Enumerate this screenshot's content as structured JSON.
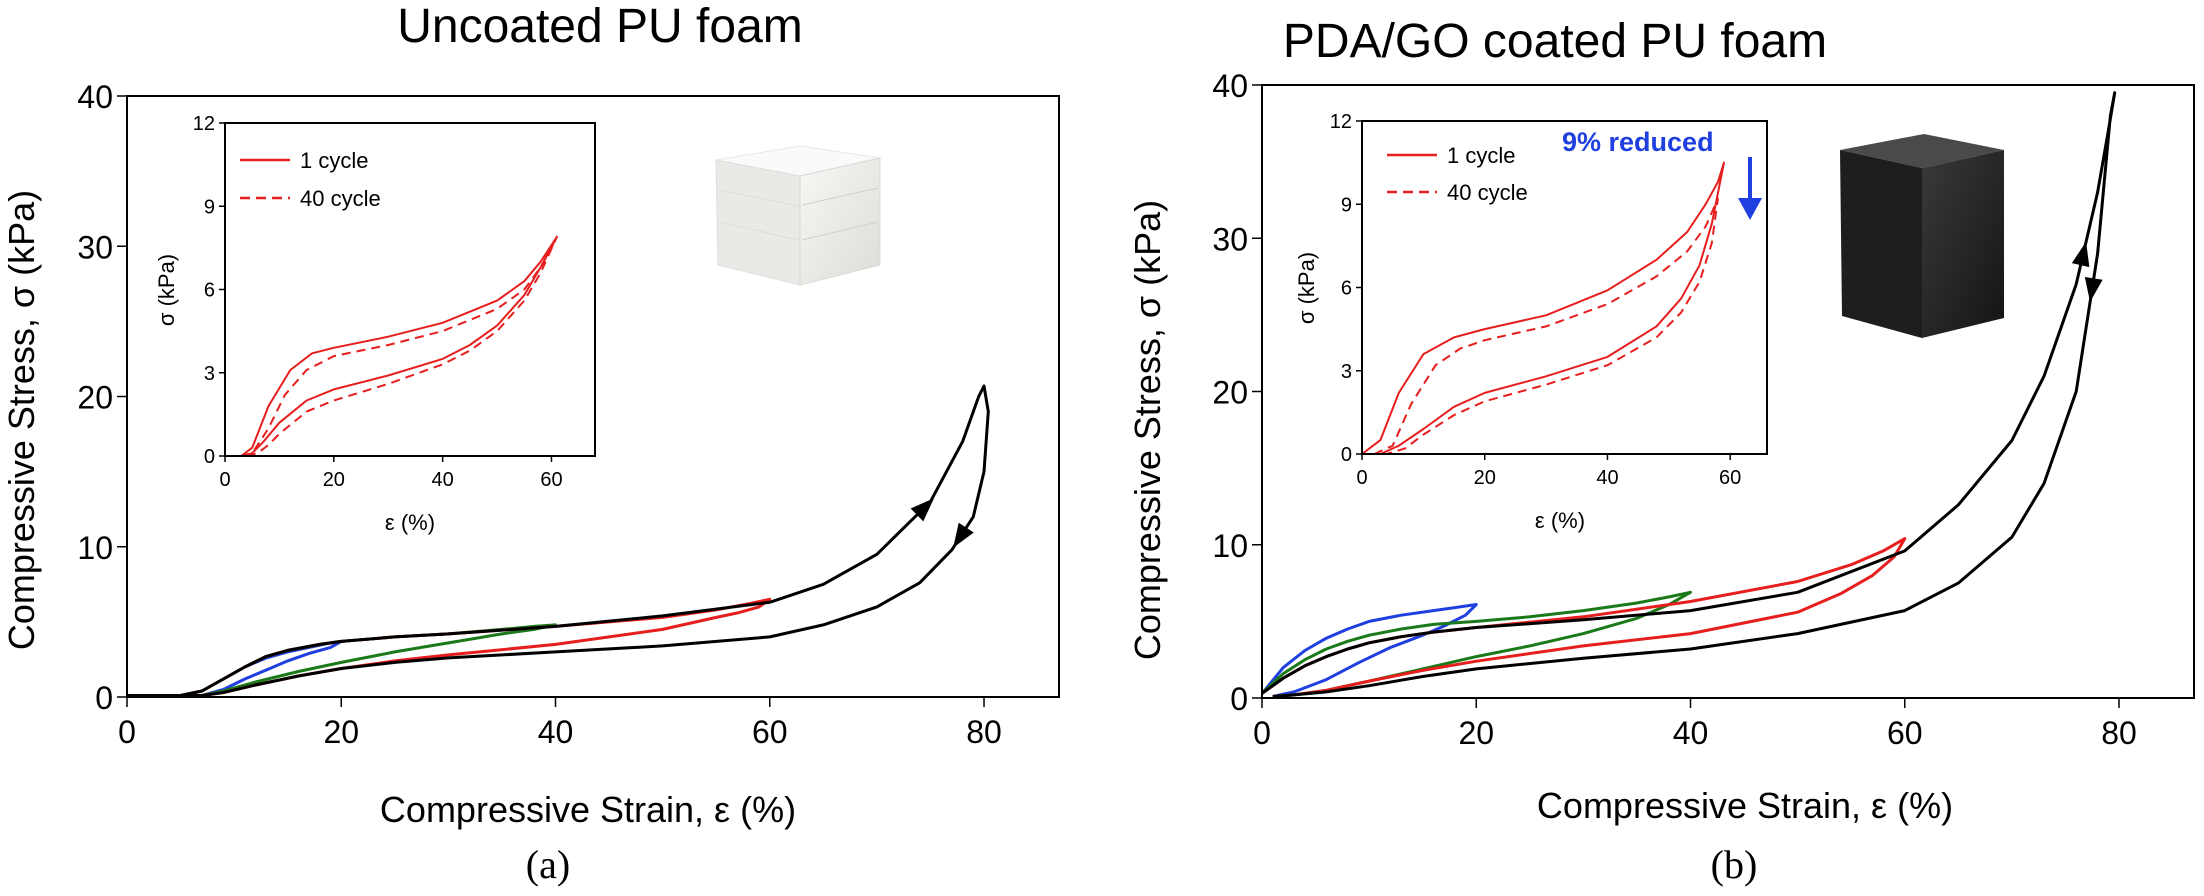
{
  "colors": {
    "black": "#000000",
    "red": "#e61e1e",
    "green": "#1a7a1a",
    "blue": "#1f3fe0",
    "annotation": "#1f3fe0"
  },
  "chart_data": [
    {
      "panel_label": "(a)",
      "type": "line",
      "title": "Uncoated PU foam",
      "xlabel": "Compressive Strain, ε (%)",
      "ylabel": "Compressive Stress, σ (kPa)",
      "xlim": [
        0,
        87
      ],
      "ylim": [
        0,
        40
      ],
      "xticks": [
        "0",
        "20",
        "40",
        "60",
        "80"
      ],
      "xtick_values": [
        0,
        20,
        40,
        60,
        80
      ],
      "yticks": [
        "0",
        "10",
        "20",
        "30",
        "40"
      ],
      "ytick_values": [
        0,
        10,
        20,
        30,
        40
      ],
      "grid": false,
      "image_icon": "white-foam-cube-photo",
      "series": [
        {
          "color": "#000000",
          "direction_arrows": true,
          "x": [
            0,
            5,
            7,
            9,
            11,
            13,
            15,
            18,
            20,
            25,
            30,
            40,
            50,
            60,
            65,
            70,
            75,
            78,
            79.5,
            80,
            80.4,
            80,
            79,
            77,
            74,
            70,
            65,
            60,
            50,
            40,
            30,
            25,
            20,
            16,
            12,
            9,
            7,
            5
          ],
          "y": [
            0.1,
            0.1,
            0.4,
            1.2,
            2.0,
            2.7,
            3.1,
            3.5,
            3.7,
            4.0,
            4.2,
            4.7,
            5.4,
            6.3,
            7.5,
            9.5,
            13.0,
            17.0,
            20.0,
            20.7,
            19.0,
            15.0,
            12.0,
            9.8,
            7.6,
            6.0,
            4.8,
            4.0,
            3.4,
            3.0,
            2.6,
            2.3,
            1.9,
            1.4,
            0.8,
            0.3,
            0.1,
            0.1
          ]
        },
        {
          "color": "#e61e1e",
          "x": [
            0,
            5,
            7,
            9,
            11,
            13,
            15,
            18,
            20,
            25,
            30,
            40,
            50,
            55,
            58,
            60,
            59,
            57,
            55,
            50,
            40,
            30,
            25,
            20,
            16,
            12,
            9,
            7,
            5
          ],
          "y": [
            0.1,
            0.1,
            0.4,
            1.2,
            2.0,
            2.7,
            3.1,
            3.5,
            3.7,
            4.0,
            4.2,
            4.7,
            5.3,
            5.8,
            6.2,
            6.5,
            6.0,
            5.6,
            5.3,
            4.5,
            3.5,
            2.8,
            2.4,
            1.9,
            1.4,
            0.8,
            0.3,
            0.1,
            0.1
          ]
        },
        {
          "color": "#1a7a1a",
          "x": [
            0,
            5,
            7,
            9,
            11,
            13,
            15,
            18,
            20,
            25,
            30,
            35,
            38,
            40,
            38,
            35,
            30,
            25,
            20,
            16,
            12,
            9,
            7,
            5
          ],
          "y": [
            0.1,
            0.1,
            0.4,
            1.2,
            2.0,
            2.7,
            3.1,
            3.5,
            3.7,
            4.0,
            4.2,
            4.5,
            4.7,
            4.8,
            4.5,
            4.2,
            3.6,
            3.0,
            2.3,
            1.7,
            1.0,
            0.4,
            0.1,
            0.1
          ]
        },
        {
          "color": "#1f3fe0",
          "x": [
            0,
            5,
            7,
            9,
            11,
            13,
            15,
            17,
            19,
            20,
            19,
            17,
            15,
            13,
            11,
            9,
            7,
            5
          ],
          "y": [
            0.1,
            0.1,
            0.4,
            1.2,
            2.0,
            2.6,
            3.0,
            3.3,
            3.6,
            3.7,
            3.3,
            2.9,
            2.4,
            1.8,
            1.2,
            0.5,
            0.1,
            0.1
          ]
        }
      ],
      "inset": {
        "xlabel": "ε (%)",
        "ylabel": "σ (kPa)",
        "xlim": [
          0,
          68
        ],
        "ylim": [
          0,
          12
        ],
        "xticks": [
          "0",
          "20",
          "40",
          "60"
        ],
        "xtick_values": [
          0,
          20,
          40,
          60
        ],
        "yticks": [
          "0",
          "3",
          "6",
          "9",
          "12"
        ],
        "ytick_values": [
          0,
          3,
          6,
          9,
          12
        ],
        "legend": [
          {
            "label": "1 cycle",
            "style": "solid"
          },
          {
            "label": "40 cycle",
            "style": "dashed"
          }
        ],
        "legend_position": "top-left",
        "series": [
          {
            "style": "solid",
            "x": [
              0,
              3,
              5,
              8,
              12,
              16,
              20,
              30,
              40,
              50,
              55,
              58,
              60,
              61,
              58,
              55,
              50,
              45,
              40,
              30,
              20,
              15,
              10,
              7,
              5,
              3
            ],
            "y": [
              0,
              0,
              0.3,
              1.8,
              3.1,
              3.7,
              3.9,
              4.3,
              4.8,
              5.6,
              6.3,
              7.0,
              7.6,
              7.9,
              6.8,
              5.8,
              4.7,
              4.0,
              3.5,
              2.9,
              2.4,
              2.0,
              1.2,
              0.5,
              0.1,
              0
            ]
          },
          {
            "style": "dashed",
            "x": [
              3,
              5,
              8,
              11,
              15,
              20,
              30,
              40,
              50,
              55,
              58,
              60,
              61,
              58,
              55,
              50,
              45,
              40,
              30,
              20,
              15,
              10,
              8,
              6,
              4
            ],
            "y": [
              0,
              0.1,
              1.0,
              2.2,
              3.1,
              3.6,
              4.0,
              4.5,
              5.3,
              6.0,
              6.8,
              7.5,
              7.9,
              6.6,
              5.6,
              4.5,
              3.8,
              3.3,
              2.6,
              2.0,
              1.6,
              0.8,
              0.4,
              0.1,
              0
            ]
          }
        ]
      }
    },
    {
      "panel_label": "(b)",
      "type": "line",
      "title": "PDA/GO coated PU foam",
      "xlabel": "Compressive Strain, ε (%)",
      "ylabel": "Compressive Stress, σ (kPa)",
      "xlim": [
        0,
        87
      ],
      "ylim": [
        0,
        40
      ],
      "xticks": [
        "0",
        "20",
        "40",
        "60",
        "80"
      ],
      "xtick_values": [
        0,
        20,
        40,
        60,
        80
      ],
      "yticks": [
        "0",
        "10",
        "20",
        "30",
        "40"
      ],
      "ytick_values": [
        0,
        10,
        20,
        30,
        40
      ],
      "grid": false,
      "image_icon": "black-foam-cube-photo",
      "series": [
        {
          "color": "#000000",
          "direction_arrows": true,
          "x": [
            0,
            2,
            4,
            6,
            8,
            10,
            13,
            16,
            20,
            30,
            40,
            50,
            60,
            65,
            70,
            73,
            76,
            78,
            79,
            79.6,
            79.2,
            78,
            76,
            73,
            70,
            65,
            60,
            50,
            40,
            30,
            20,
            15,
            10,
            6,
            3,
            1
          ],
          "y": [
            0.3,
            1.3,
            2.1,
            2.7,
            3.2,
            3.6,
            4.0,
            4.3,
            4.6,
            5.1,
            5.7,
            6.9,
            9.6,
            12.6,
            16.8,
            21.0,
            27.0,
            33.0,
            37.0,
            39.5,
            38.0,
            29.0,
            20.0,
            14.0,
            10.5,
            7.5,
            5.7,
            4.2,
            3.2,
            2.6,
            1.9,
            1.4,
            0.8,
            0.4,
            0.2,
            0.1
          ]
        },
        {
          "color": "#e61e1e",
          "x": [
            0,
            2,
            4,
            6,
            8,
            10,
            13,
            16,
            20,
            30,
            40,
            50,
            55,
            58,
            60,
            59,
            57,
            54,
            50,
            40,
            30,
            20,
            15,
            10,
            6,
            3,
            1
          ],
          "y": [
            0.3,
            1.3,
            2.1,
            2.7,
            3.2,
            3.6,
            4.0,
            4.3,
            4.6,
            5.3,
            6.3,
            7.6,
            8.7,
            9.6,
            10.4,
            9.2,
            8.0,
            6.8,
            5.6,
            4.2,
            3.4,
            2.4,
            1.8,
            1.1,
            0.5,
            0.2,
            0.1
          ]
        },
        {
          "color": "#1a7a1a",
          "x": [
            0,
            2,
            4,
            6,
            8,
            10,
            13,
            16,
            20,
            25,
            30,
            35,
            38,
            40,
            38,
            35,
            30,
            25,
            20,
            15,
            10,
            6,
            3,
            1
          ],
          "y": [
            0.3,
            1.6,
            2.5,
            3.2,
            3.7,
            4.1,
            4.5,
            4.8,
            5.0,
            5.3,
            5.7,
            6.2,
            6.6,
            6.9,
            6.1,
            5.2,
            4.2,
            3.4,
            2.7,
            1.9,
            1.1,
            0.5,
            0.2,
            0.1
          ]
        },
        {
          "color": "#1f3fe0",
          "x": [
            0,
            2,
            4,
            6,
            8,
            10,
            13,
            16,
            18,
            20,
            19,
            17,
            15,
            12,
            9,
            6,
            3,
            1
          ],
          "y": [
            0.3,
            2.0,
            3.1,
            3.9,
            4.5,
            5.0,
            5.4,
            5.7,
            5.9,
            6.1,
            5.4,
            4.7,
            4.1,
            3.3,
            2.3,
            1.2,
            0.4,
            0.1
          ]
        }
      ],
      "inset": {
        "xlabel": "ε (%)",
        "ylabel": "σ (kPa)",
        "xlim": [
          0,
          66
        ],
        "ylim": [
          0,
          12
        ],
        "xticks": [
          "0",
          "20",
          "40",
          "60"
        ],
        "xtick_values": [
          0,
          20,
          40,
          60
        ],
        "yticks": [
          "0",
          "3",
          "6",
          "9",
          "12"
        ],
        "ytick_values": [
          0,
          3,
          6,
          9,
          12
        ],
        "legend": [
          {
            "label": "1 cycle",
            "style": "solid"
          },
          {
            "label": "40 cycle",
            "style": "dashed"
          }
        ],
        "legend_position": "top-left",
        "annotation": {
          "text": "9% reduced",
          "arrow": "down"
        },
        "series": [
          {
            "style": "solid",
            "x": [
              0,
              3,
              6,
              10,
              15,
              20,
              30,
              40,
              48,
              53,
              56,
              58,
              59,
              57,
              55,
              52,
              48,
              40,
              30,
              20,
              15,
              10,
              6,
              3
            ],
            "y": [
              0,
              0.5,
              2.2,
              3.6,
              4.2,
              4.5,
              5.0,
              5.9,
              7.0,
              8.0,
              9.0,
              9.8,
              10.5,
              8.3,
              6.8,
              5.6,
              4.6,
              3.5,
              2.8,
              2.2,
              1.7,
              0.9,
              0.3,
              0
            ]
          },
          {
            "style": "dashed",
            "x": [
              2,
              5,
              8,
              12,
              16,
              20,
              30,
              40,
              48,
              53,
              56,
              58,
              57,
              55,
              52,
              48,
              40,
              30,
              20,
              15,
              10,
              7,
              4
            ],
            "y": [
              0,
              0.3,
              1.8,
              3.2,
              3.8,
              4.1,
              4.6,
              5.4,
              6.4,
              7.3,
              8.2,
              9.2,
              7.6,
              6.2,
              5.1,
              4.2,
              3.2,
              2.5,
              1.9,
              1.4,
              0.7,
              0.2,
              0
            ]
          }
        ]
      }
    }
  ]
}
